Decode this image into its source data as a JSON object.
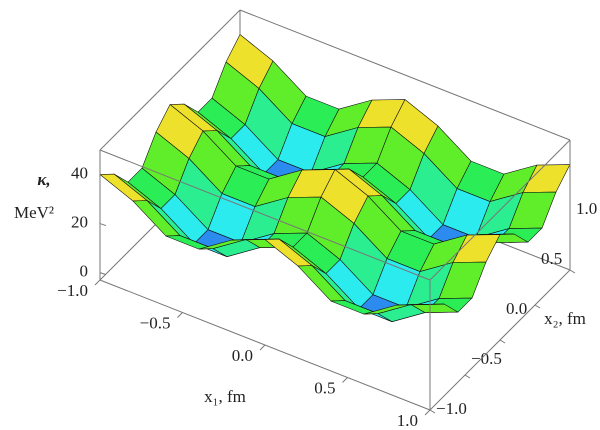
{
  "chart_data": {
    "type": "surface",
    "zlabel": [
      "κ,",
      "MeV²"
    ],
    "xlabel": "x₁, fm",
    "ylabel": "x₂, fm",
    "x1": [
      -1,
      -0.8,
      -0.6,
      -0.4,
      -0.2,
      0,
      0.2,
      0.4,
      0.6,
      0.8,
      1
    ],
    "x2": [
      -1,
      -0.8,
      -0.6,
      -0.4,
      -0.2,
      0,
      0.2,
      0.4,
      0.6,
      0.8,
      1
    ],
    "z": [
      [
        40,
        34.5,
        25.5,
        25.5,
        34.5,
        40,
        34.5,
        25.5,
        25.5,
        34.5,
        40
      ],
      [
        34.5,
        29,
        20,
        20,
        29,
        34.5,
        29,
        20,
        20,
        29,
        34.5
      ],
      [
        25.5,
        20,
        11,
        11,
        20,
        25.5,
        20,
        11,
        11,
        20,
        25.5
      ],
      [
        25.5,
        20,
        11,
        11,
        20,
        25.5,
        20,
        11,
        11,
        20,
        25.5
      ],
      [
        34.5,
        29,
        20,
        20,
        29,
        34.5,
        29,
        20,
        20,
        29,
        34.5
      ],
      [
        40,
        34.5,
        25.5,
        25.5,
        34.5,
        40,
        34.5,
        25.5,
        25.5,
        34.5,
        40
      ],
      [
        34.5,
        29,
        20,
        20,
        29,
        34.5,
        29,
        20,
        20,
        29,
        34.5
      ],
      [
        25.5,
        20,
        11,
        11,
        20,
        25.5,
        20,
        11,
        11,
        20,
        25.5
      ],
      [
        25.5,
        20,
        11,
        11,
        20,
        25.5,
        20,
        11,
        11,
        20,
        25.5
      ],
      [
        34.5,
        29,
        20,
        20,
        29,
        34.5,
        29,
        20,
        20,
        29,
        34.5
      ],
      [
        40,
        34.5,
        25.5,
        25.5,
        34.5,
        40,
        34.5,
        25.5,
        25.5,
        34.5,
        40
      ]
    ],
    "xlim": [
      -1,
      1
    ],
    "ylim": [
      -1,
      1
    ],
    "zlim": [
      -3,
      50
    ],
    "xticks": [
      {
        "value": -1,
        "label": "−1.0"
      },
      {
        "value": -0.5,
        "label": "−0.5"
      },
      {
        "value": 0,
        "label": "0.0"
      },
      {
        "value": 0.5,
        "label": "0.5"
      },
      {
        "value": 1,
        "label": "1.0"
      }
    ],
    "yticks": [
      {
        "value": -1,
        "label": "−1.0"
      },
      {
        "value": -0.5,
        "label": "−0.5"
      },
      {
        "value": 0,
        "label": "0.0"
      },
      {
        "value": 0.5,
        "label": "0.5"
      },
      {
        "value": 1,
        "label": "1.0"
      }
    ],
    "zticks": [
      0,
      20,
      40
    ],
    "colormap": "rainbow",
    "mesh": true
  }
}
